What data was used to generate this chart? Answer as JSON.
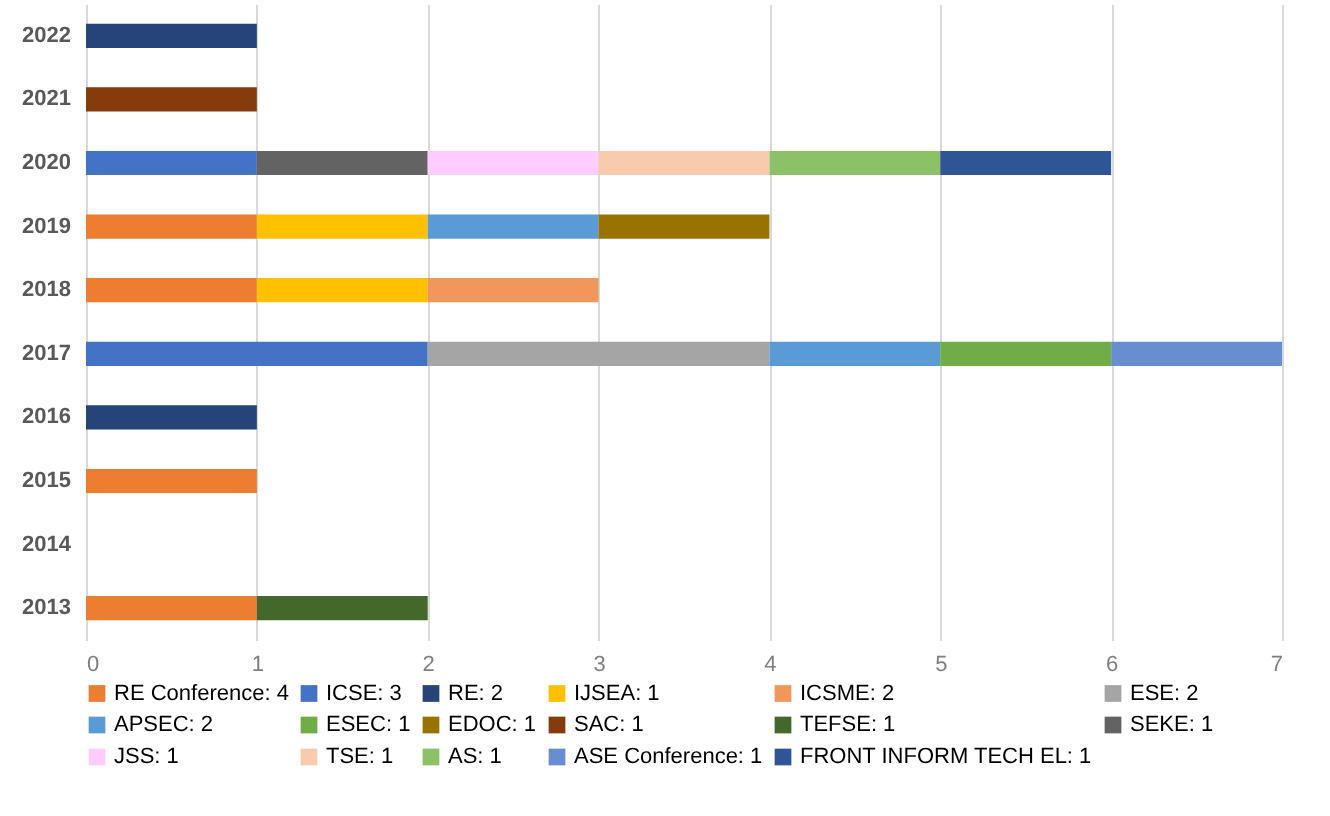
{
  "chart_data": {
    "type": "bar",
    "orientation": "horizontal",
    "stacked": true,
    "categories": [
      "2022",
      "2021",
      "2020",
      "2019",
      "2018",
      "2017",
      "2016",
      "2015",
      "2014",
      "2013"
    ],
    "series": [
      {
        "name": "RE Conference: 4",
        "color": "#ed7d31",
        "values": [
          null,
          null,
          null,
          1,
          1,
          null,
          null,
          1,
          null,
          1
        ]
      },
      {
        "name": "ICSE: 3",
        "color": "#4472c4",
        "values": [
          null,
          null,
          1,
          null,
          null,
          2,
          null,
          null,
          null,
          null
        ]
      },
      {
        "name": "RE: 2",
        "color": "#264478",
        "values": [
          1,
          null,
          null,
          null,
          null,
          null,
          1,
          null,
          null,
          null
        ]
      },
      {
        "name": "IJSEA: 1",
        "color": "#ffc000",
        "values": [
          null,
          null,
          null,
          1,
          1,
          null,
          null,
          null,
          null,
          null
        ]
      },
      {
        "name": "ICSME: 2",
        "color": "#f0975b",
        "values": [
          null,
          null,
          null,
          null,
          1,
          null,
          null,
          null,
          null,
          null
        ]
      },
      {
        "name": "ESE: 2",
        "color": "#a5a5a5",
        "values": [
          null,
          null,
          null,
          null,
          null,
          2,
          null,
          null,
          null,
          null
        ]
      },
      {
        "name": "APSEC: 2",
        "color": "#5b9bd5",
        "values": [
          null,
          null,
          null,
          1,
          null,
          1,
          null,
          null,
          null,
          null
        ]
      },
      {
        "name": "ESEC: 1",
        "color": "#70ad47",
        "values": [
          null,
          null,
          null,
          null,
          null,
          1,
          null,
          null,
          null,
          null
        ]
      },
      {
        "name": "EDOC: 1",
        "color": "#997300",
        "values": [
          null,
          null,
          null,
          1,
          null,
          null,
          null,
          null,
          null,
          null
        ]
      },
      {
        "name": "SAC: 1",
        "color": "#843c0c",
        "values": [
          null,
          1,
          null,
          null,
          null,
          null,
          null,
          null,
          null,
          null
        ]
      },
      {
        "name": "TEFSE: 1",
        "color": "#43682b",
        "values": [
          null,
          null,
          null,
          null,
          null,
          null,
          null,
          null,
          null,
          1
        ]
      },
      {
        "name": "SEKE: 1",
        "color": "#636363",
        "values": [
          null,
          null,
          1,
          null,
          null,
          null,
          null,
          null,
          null,
          null
        ]
      },
      {
        "name": "JSS: 1",
        "color": "#ffccff",
        "values": [
          null,
          null,
          1,
          null,
          null,
          null,
          null,
          null,
          null,
          null
        ]
      },
      {
        "name": "TSE: 1",
        "color": "#f8cbad",
        "values": [
          null,
          null,
          1,
          null,
          null,
          null,
          null,
          null,
          null,
          null
        ]
      },
      {
        "name": "AS: 1",
        "color": "#8cc168",
        "values": [
          null,
          null,
          1,
          null,
          null,
          null,
          null,
          null,
          null,
          null
        ]
      },
      {
        "name": "ASE Conference: 1",
        "color": "#698ed0",
        "values": [
          null,
          null,
          null,
          null,
          null,
          1,
          null,
          null,
          null,
          null
        ]
      },
      {
        "name": "FRONT INFORM TECH EL: 1",
        "color": "#2f5597",
        "values": [
          null,
          null,
          1,
          null,
          null,
          null,
          null,
          null,
          null,
          null
        ]
      }
    ],
    "xlim": [
      0,
      7
    ],
    "xticks": [
      0,
      1,
      2,
      3,
      4,
      5,
      6,
      7
    ],
    "grid": "x",
    "legend": "bottom"
  }
}
